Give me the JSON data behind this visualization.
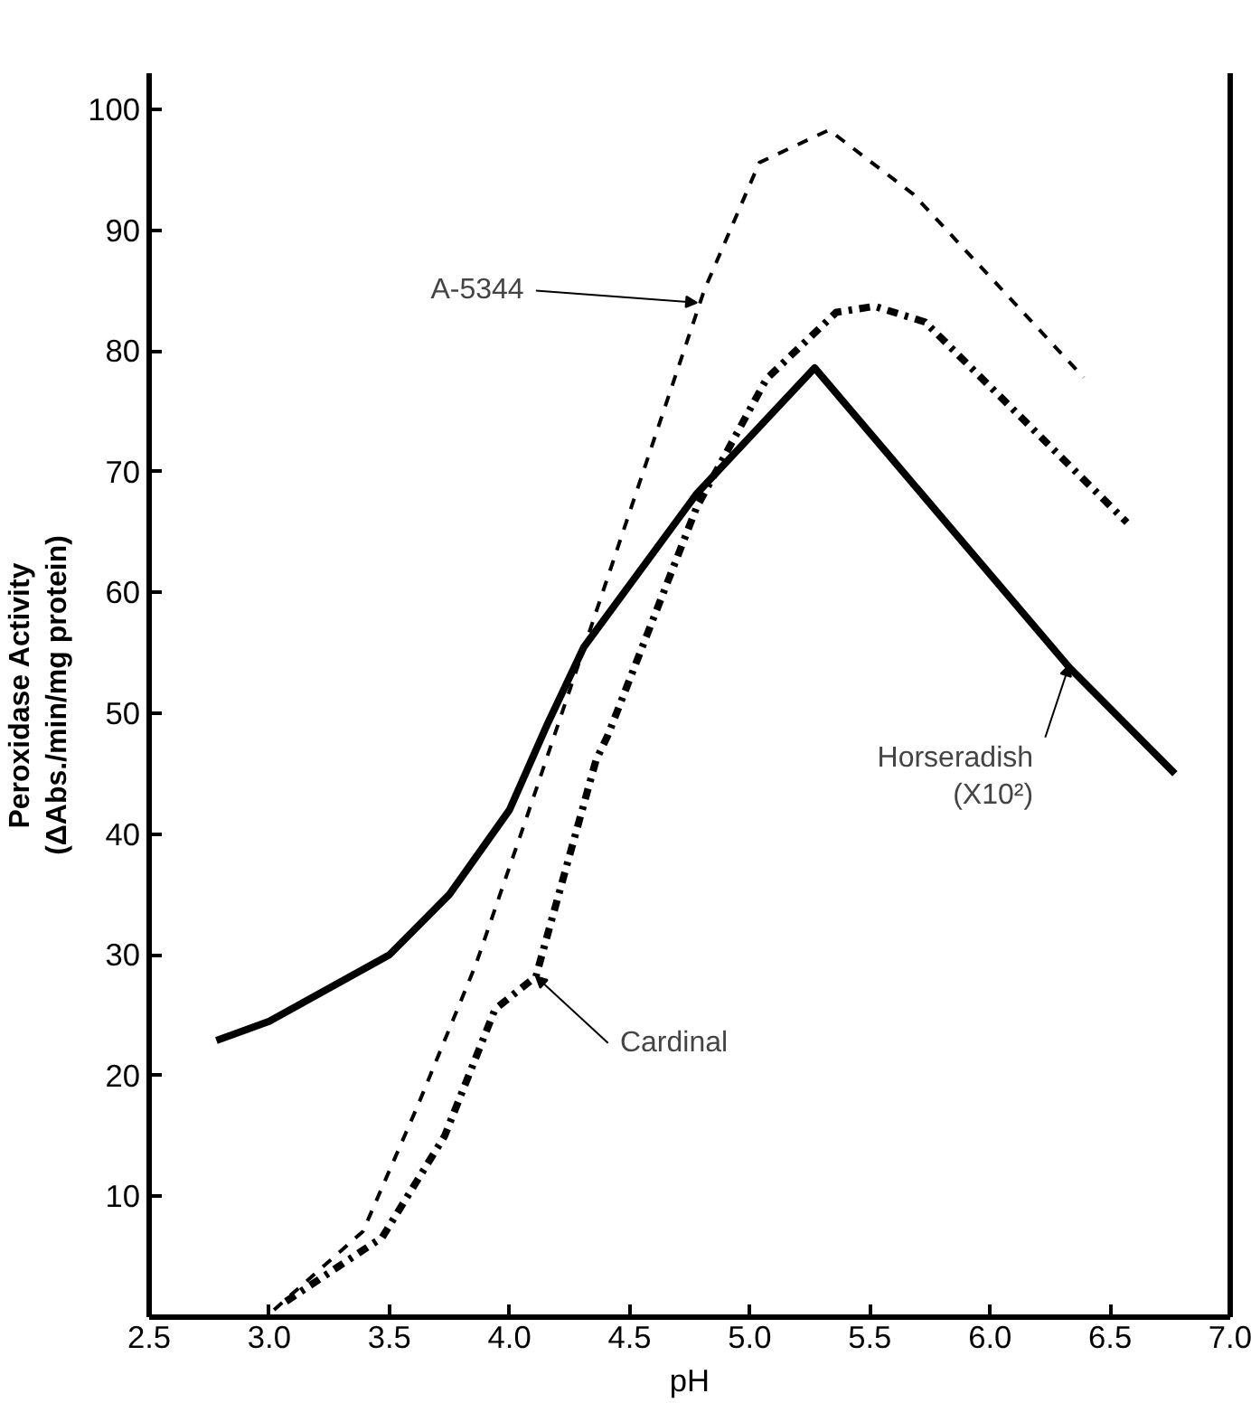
{
  "chart_data": {
    "type": "line",
    "xlabel": "pH",
    "ylabel": "Peroxidase Activity\n(ΔAbs./min/mg protein)",
    "xlim": [
      2.5,
      7.0
    ],
    "ylim": [
      0,
      103
    ],
    "xticks": [
      {
        "value": 2.5,
        "label": "2.5"
      },
      {
        "value": 3.0,
        "label": "3.0"
      },
      {
        "value": 3.5,
        "label": "3.5"
      },
      {
        "value": 4.0,
        "label": "4.0"
      },
      {
        "value": 4.5,
        "label": "4.5"
      },
      {
        "value": 5.0,
        "label": "5.0"
      },
      {
        "value": 5.5,
        "label": "5.5"
      },
      {
        "value": 6.0,
        "label": "6.0"
      },
      {
        "value": 6.5,
        "label": "6.5"
      },
      {
        "value": 7.0,
        "label": "7.0"
      }
    ],
    "yticks": [
      10,
      20,
      30,
      40,
      50,
      60,
      70,
      80,
      90,
      100
    ],
    "grid": false,
    "marker": "none",
    "series": [
      {
        "color": "#000000",
        "line_style": "solid",
        "x": [
          2.78,
          3.0,
          3.5,
          3.75,
          4.0,
          4.16,
          4.31,
          4.78,
          5.27,
          6.33,
          6.77
        ],
        "values": [
          22.9,
          24.5,
          30,
          35,
          42,
          49.2,
          55.5,
          68.2,
          78.6,
          53.8,
          45.0
        ]
      },
      {
        "color": "#000000",
        "line_style": "dashed",
        "x": [
          3.02,
          3.39,
          3.62,
          3.86,
          4.07,
          4.32,
          4.81,
          5.04,
          5.33,
          5.68,
          6.39
        ],
        "values": [
          0.6,
          7.1,
          17.6,
          29.2,
          41.3,
          56,
          85.0,
          95.6,
          98.3,
          93.0,
          77.8
        ]
      },
      {
        "color": "#000000",
        "line_style": "dashdot",
        "x": [
          3.07,
          3.47,
          3.73,
          3.94,
          4.11,
          4.36,
          4.41,
          4.78,
          5.07,
          5.36,
          5.52,
          5.73,
          6.57
        ],
        "values": [
          1.3,
          6.6,
          15,
          25.5,
          28.2,
          46.1,
          48.2,
          67.1,
          77.7,
          83.2,
          83.7,
          82.4,
          65.8
        ]
      }
    ],
    "annotations": [
      {
        "text": "A-5344",
        "x": 4.78,
        "y": 84
      },
      {
        "text": "Cardinal",
        "x": 4.11,
        "y": 28.2
      },
      {
        "text": "Horseradish\n(X10²)",
        "x": 6.33,
        "y": 54
      }
    ]
  }
}
